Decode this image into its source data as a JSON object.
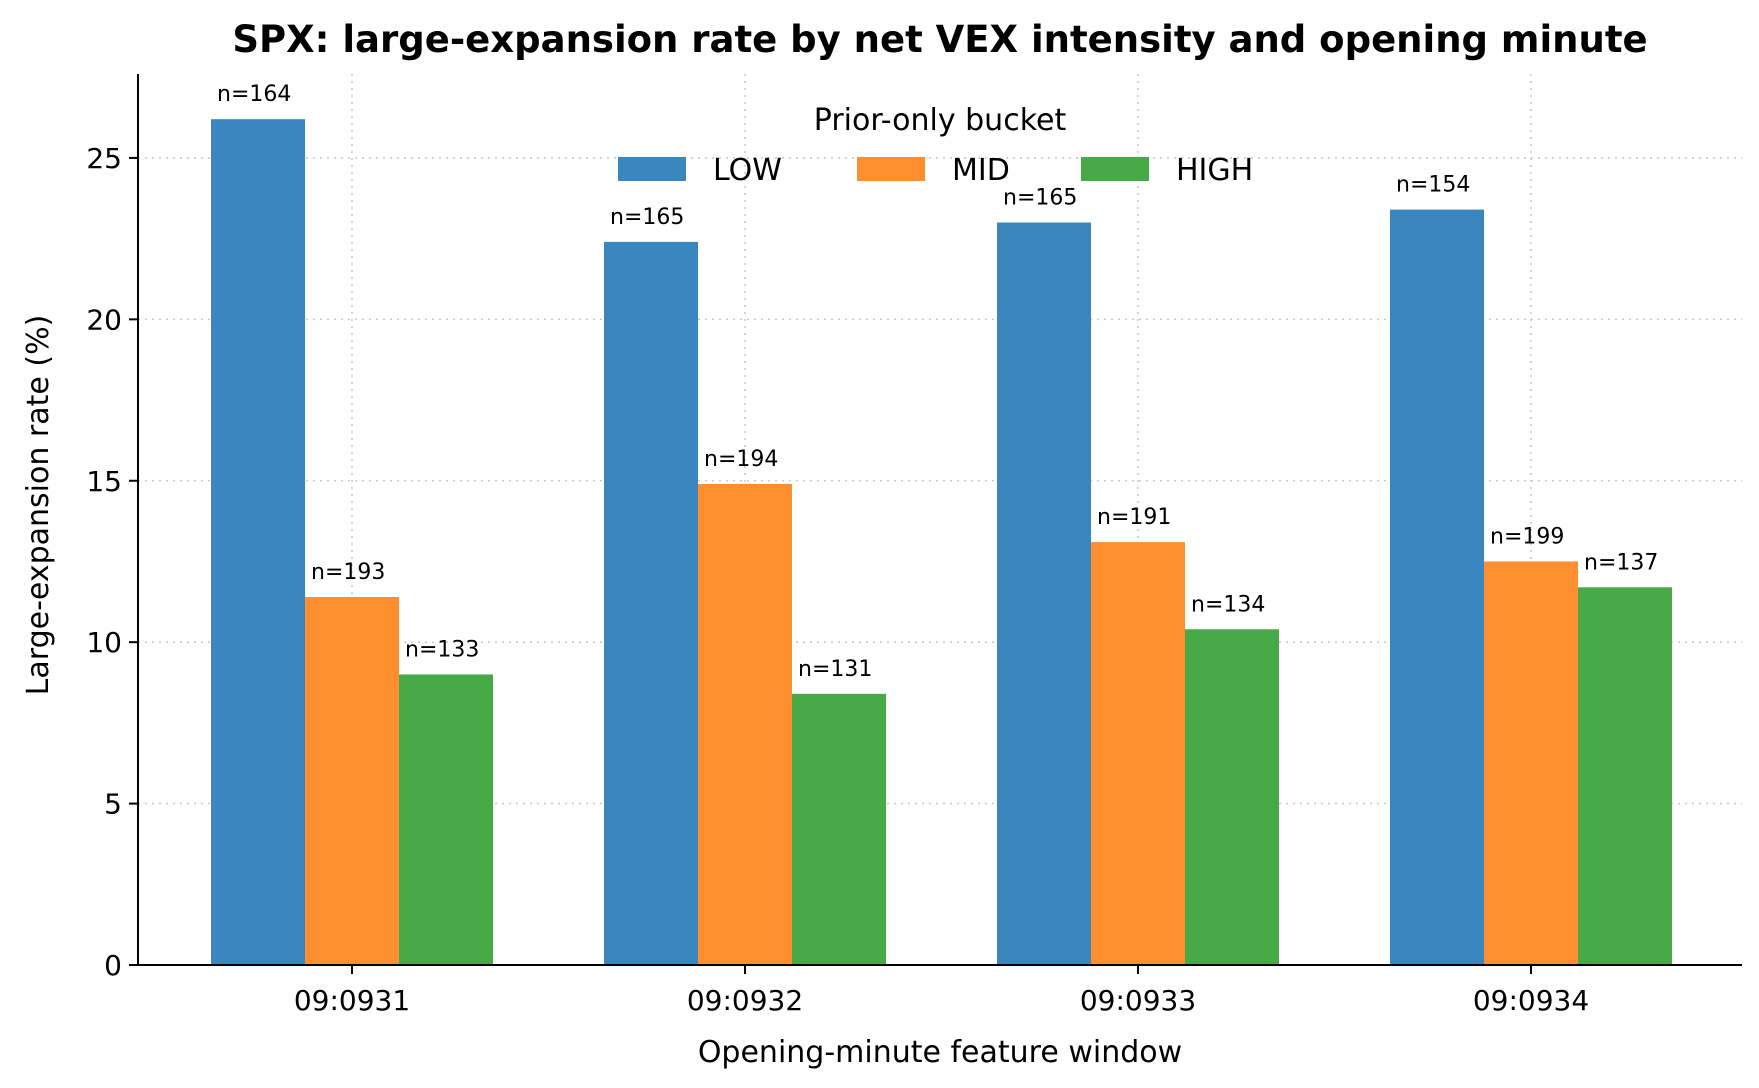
{
  "chart_data": {
    "type": "bar",
    "title": "SPX: large-expansion rate by net VEX intensity and opening minute",
    "xlabel": "Opening-minute feature window",
    "ylabel": "Large-expansion rate (%)",
    "categories": [
      "09:0931",
      "09:0932",
      "09:0933",
      "09:0934"
    ],
    "ylim": [
      0,
      27.6
    ],
    "yticks": [
      0,
      5,
      10,
      15,
      20,
      25
    ],
    "grid": true,
    "legend": {
      "title": "Prior-only bucket",
      "placement": "top-center",
      "columns": 3
    },
    "series": [
      {
        "name": "LOW",
        "color": "#3a87bf",
        "values": [
          26.2,
          22.4,
          23.0,
          23.4
        ],
        "n": [
          "n=164",
          "n=165",
          "n=165",
          "n=154"
        ]
      },
      {
        "name": "MID",
        "color": "#ff8f2e",
        "values": [
          11.4,
          14.9,
          13.1,
          12.5
        ],
        "n": [
          "n=193",
          "n=194",
          "n=191",
          "n=199"
        ]
      },
      {
        "name": "HIGH",
        "color": "#47aa46",
        "values": [
          9.0,
          8.4,
          10.4,
          11.7
        ],
        "n": [
          "n=133",
          "n=131",
          "n=134",
          "n=137"
        ]
      }
    ]
  }
}
